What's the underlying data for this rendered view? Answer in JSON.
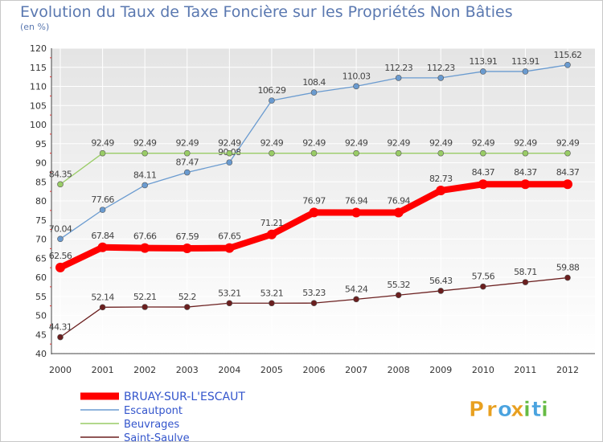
{
  "chart_data": {
    "type": "line",
    "title": "Evolution du Taux de Taxe Foncière sur les Propriétés Non Bâties",
    "unit_label": "(en %)",
    "x": [
      "2000",
      "2001",
      "2002",
      "2003",
      "2004",
      "2005",
      "2006",
      "2007",
      "2008",
      "2009",
      "2010",
      "2011",
      "2012"
    ],
    "ylim": [
      40,
      120
    ],
    "yticks": [
      "40",
      "45",
      "50",
      "55",
      "60",
      "65",
      "70",
      "75",
      "80",
      "85",
      "90",
      "95",
      "100",
      "105",
      "110",
      "115",
      "120"
    ],
    "grid": true,
    "legend_position": "bottom-left",
    "series": [
      {
        "name": "BRUAY-SUR-L'ESCAUT",
        "color": "#ff0000",
        "emphasis": true,
        "values": [
          62.56,
          67.84,
          67.66,
          67.59,
          67.65,
          71.21,
          76.97,
          76.94,
          76.94,
          82.73,
          84.37,
          84.37,
          84.37
        ],
        "labels": [
          "62.56",
          "67.84",
          "67.66",
          "67.59",
          "67.65",
          "71.21",
          "76.97",
          "76.94",
          "76.94",
          "82.73",
          "84.37",
          "84.37",
          "84.37"
        ]
      },
      {
        "name": "Escautpont",
        "color": "#6a9bd0",
        "emphasis": false,
        "values": [
          70.04,
          77.66,
          84.11,
          87.47,
          90.08,
          106.29,
          108.4,
          110.03,
          112.23,
          112.23,
          113.91,
          113.91,
          115.62
        ],
        "labels": [
          "70.04",
          "77.66",
          "84.11",
          "87.47",
          "90.08",
          "106.29",
          "108.4",
          "110.03",
          "112.23",
          "112.23",
          "113.91",
          "113.91",
          "115.62"
        ]
      },
      {
        "name": "Beuvrages",
        "color": "#99cc66",
        "emphasis": false,
        "values": [
          84.35,
          92.49,
          92.49,
          92.49,
          92.49,
          92.49,
          92.49,
          92.49,
          92.49,
          92.49,
          92.49,
          92.49,
          92.49
        ],
        "labels": [
          "84.35",
          "92.49",
          "92.49",
          "92.49",
          "92.49",
          "92.49",
          "92.49",
          "92.49",
          "92.49",
          "92.49",
          "92.49",
          "92.49",
          "92.49"
        ]
      },
      {
        "name": "Saint-Saulve",
        "color": "#6b1f1f",
        "emphasis": false,
        "values": [
          44.31,
          52.14,
          52.21,
          52.2,
          53.21,
          53.21,
          53.23,
          54.24,
          55.32,
          56.43,
          57.56,
          58.71,
          59.88
        ],
        "labels": [
          "44.31",
          "52.14",
          "52.21",
          "52.2",
          "53.21",
          "53.21",
          "53.23",
          "54.24",
          "55.32",
          "56.43",
          "57.56",
          "58.71",
          "59.88"
        ]
      }
    ]
  },
  "brand": {
    "name": "Proxiti",
    "letters": [
      "P",
      "r",
      "o",
      "x",
      "i",
      "t",
      "i"
    ],
    "colors": [
      "#e8a020",
      "#e8a020",
      "#4aa3df",
      "#e8a020",
      "#66bb44",
      "#4aa3df",
      "#66bb44"
    ]
  }
}
